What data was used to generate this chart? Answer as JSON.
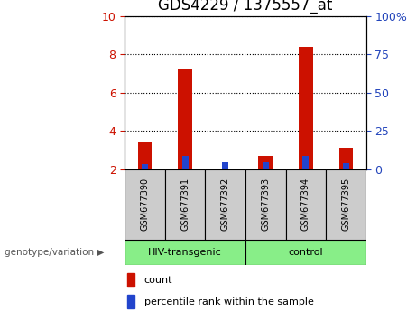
{
  "title": "GDS4229 / 1375557_at",
  "samples": [
    "GSM677390",
    "GSM677391",
    "GSM677392",
    "GSM677393",
    "GSM677394",
    "GSM677395"
  ],
  "count_values": [
    3.4,
    7.2,
    2.05,
    2.7,
    8.4,
    3.1
  ],
  "percentile_values": [
    2.25,
    2.7,
    2.35,
    2.35,
    2.7,
    2.3
  ],
  "baseline": 2.0,
  "ylim_left": [
    2,
    10
  ],
  "ylim_right": [
    0,
    100
  ],
  "yticks_left": [
    2,
    4,
    6,
    8,
    10
  ],
  "yticks_right": [
    0,
    25,
    50,
    75,
    100
  ],
  "ytick_labels_right": [
    "0",
    "25",
    "50",
    "75",
    "100%"
  ],
  "bar_width": 0.35,
  "red_color": "#cc1100",
  "blue_color": "#2244cc",
  "group1_label": "HIV-transgenic",
  "group2_label": "control",
  "group1_indices": [
    0,
    1,
    2
  ],
  "group2_indices": [
    3,
    4,
    5
  ],
  "group_color": "#88ee88",
  "sample_box_color": "#cccccc",
  "xlabel_left": "genotype/variation",
  "legend_count": "count",
  "legend_percentile": "percentile rank within the sample",
  "left_tick_color": "#cc1100",
  "right_tick_color": "#2244bb",
  "title_fontsize": 12,
  "tick_fontsize": 9,
  "label_fontsize": 8
}
